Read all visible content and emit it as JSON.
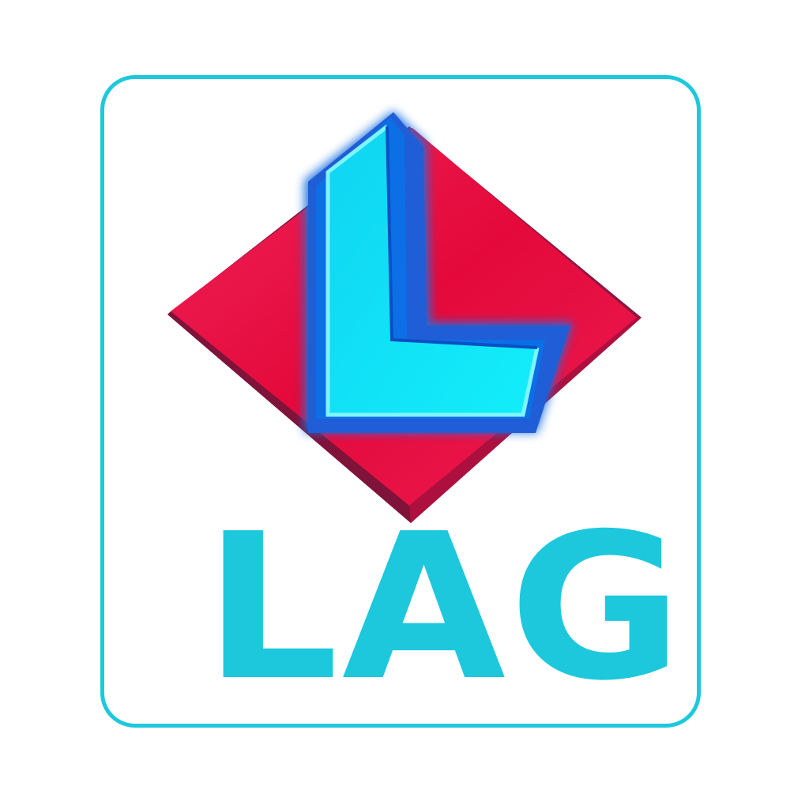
{
  "logo": {
    "wordmark": "LAG",
    "colors": {
      "frame": "#1ec8dc",
      "wordmark": "#1ec8dc",
      "diamond": "#e4093a",
      "diamond_shadow": "#8c1540",
      "letter_face": "#12e8f6",
      "letter_outline": "#1f5ed6",
      "background": "#ffffff"
    },
    "icons": {
      "emblem": "diamond-l-emblem-icon"
    }
  }
}
